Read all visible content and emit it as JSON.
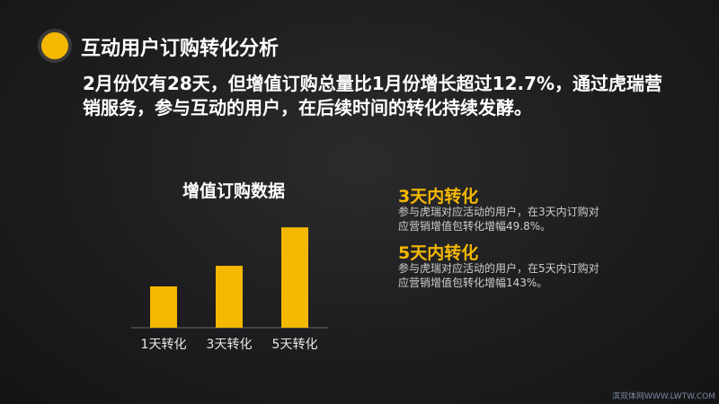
{
  "title": "互动用户订购转化分析",
  "headline": "2月份仅有28天，但增值订购总量比1月份增长超过12.7%，通过虎瑞营销服务，参与互动的用户，在后续时间的转化持续发酵。",
  "chart_data": {
    "type": "bar",
    "title": "增值订购数据",
    "categories": [
      "1天转化",
      "3天转化",
      "5天转化"
    ],
    "values": [
      1.0,
      1.498,
      2.43
    ],
    "xlabel": "",
    "ylabel": "",
    "grid": false,
    "bar_color": "#f5b800"
  },
  "sections": [
    {
      "title": "3天内转化",
      "desc": "参与虎瑞对应活动的用户，在3天内订购对应营销增值包转化增幅49.8%。"
    },
    {
      "title": "5天内转化",
      "desc": "参与虎瑞对应活动的用户，在5天内订购对应营销增值包转化增幅143%。"
    }
  ],
  "colors": {
    "accent": "#f5b800",
    "background": "#1c1c1e"
  },
  "watermark": "滨双体网WWW.LWTW.COM"
}
